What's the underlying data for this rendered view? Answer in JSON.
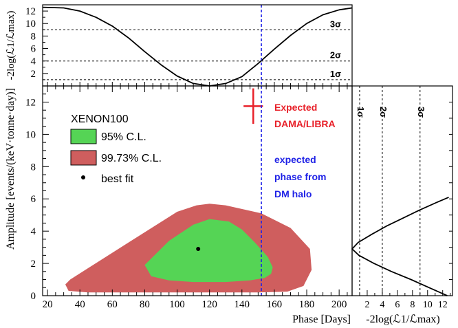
{
  "chart_data": [
    {
      "panel": "main",
      "type": "contour",
      "xlabel": "Phase [Days]",
      "ylabel": "Amplitude [events/(keV·tonne·day)]",
      "xlim": [
        17,
        208
      ],
      "ylim": [
        0,
        13
      ],
      "xticks": [
        20,
        40,
        60,
        80,
        100,
        120,
        140,
        160,
        180,
        200
      ],
      "yticks": [
        0,
        2,
        4,
        6,
        8,
        10,
        12
      ],
      "legend": {
        "title": "XENON100",
        "placement": "top-left",
        "entries": [
          {
            "label": "95% C.L.",
            "color": "#55d455"
          },
          {
            "label": "99.73% C.L.",
            "color": "#cf5e5e"
          },
          {
            "label": "best fit",
            "color": "#000000"
          }
        ]
      },
      "regions": [
        {
          "name": "99.73% C.L.",
          "color": "#cf5e5e",
          "x": [
            34,
            70,
            100,
            112,
            120,
            130,
            152,
            170,
            182,
            183,
            178,
            168,
            150,
            130,
            100,
            70,
            45,
            33,
            31,
            34
          ],
          "y": [
            1.0,
            3.3,
            5.2,
            5.6,
            5.7,
            5.6,
            5.1,
            4.2,
            2.9,
            1.6,
            0.6,
            0.25,
            0.2,
            0.2,
            0.2,
            0.2,
            0.2,
            0.3,
            0.7,
            1.0
          ]
        },
        {
          "name": "95% C.L.",
          "color": "#55d455",
          "x": [
            80,
            95,
            110,
            120,
            132,
            140,
            148,
            156,
            159,
            158,
            154,
            145,
            130,
            110,
            95,
            84,
            80
          ],
          "y": [
            1.9,
            3.4,
            4.4,
            4.75,
            4.6,
            4.1,
            3.3,
            2.4,
            1.75,
            1.35,
            1.1,
            0.95,
            0.85,
            0.85,
            0.95,
            1.2,
            1.9
          ]
        }
      ],
      "best_fit": {
        "label": "best fit",
        "x": 113,
        "y": 2.9
      },
      "expected_dama": {
        "label": "Expected\nDAMA/LIBRA",
        "x": 147,
        "y": 11.75,
        "xerr": 6,
        "yerr": 1.1,
        "color": "#e8212a"
      },
      "dm_phase": {
        "label": "expected\nphase from\nDM halo",
        "x": 152,
        "color": "#1f22e6"
      }
    },
    {
      "panel": "top",
      "type": "line",
      "ylabel": "-2log(ℒ1/ℒmax)",
      "xlim": [
        17,
        208
      ],
      "ylim": [
        0,
        13
      ],
      "yticks": [
        2,
        4,
        6,
        8,
        10,
        12
      ],
      "sigma_lines": [
        {
          "label": "1σ",
          "y": 1
        },
        {
          "label": "2σ",
          "y": 4
        },
        {
          "label": "3σ",
          "y": 9
        }
      ],
      "series": [
        {
          "x": [
            17,
            30,
            40,
            50,
            60,
            70,
            80,
            90,
            100,
            110,
            120,
            130,
            140,
            150,
            160,
            170,
            180,
            190,
            200,
            208
          ],
          "y": [
            12.6,
            12.5,
            12.0,
            11.0,
            9.6,
            7.7,
            5.5,
            3.4,
            1.6,
            0.4,
            0.0,
            0.4,
            1.5,
            3.6,
            5.9,
            8.1,
            10.0,
            11.4,
            12.2,
            12.5
          ]
        }
      ],
      "dm_phase_x": 152
    },
    {
      "panel": "right",
      "type": "line",
      "xlabel": "-2log(ℒ1/ℒmax)",
      "xlim": [
        0,
        13.3
      ],
      "ylim": [
        0,
        13
      ],
      "xticks": [
        2,
        4,
        6,
        8,
        10,
        12
      ],
      "sigma_lines": [
        {
          "label": "1σ",
          "x": 1
        },
        {
          "label": "2σ",
          "x": 4
        },
        {
          "label": "3σ",
          "x": 9
        }
      ],
      "series": [
        {
          "y": [
            0.0,
            0.5,
            1.0,
            1.5,
            2.0,
            2.5,
            2.9,
            3.3,
            3.8,
            4.3,
            4.8,
            5.3,
            5.8,
            6.1
          ],
          "x": [
            12.6,
            10.2,
            7.8,
            5.2,
            2.9,
            0.9,
            0.0,
            0.8,
            2.6,
            4.5,
            6.7,
            8.9,
            11.3,
            12.8
          ]
        }
      ]
    }
  ]
}
